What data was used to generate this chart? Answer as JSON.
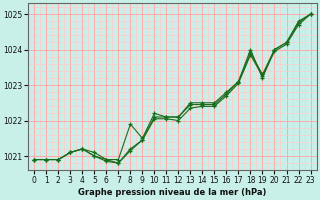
{
  "title": "Graphe pression niveau de la mer (hPa)",
  "bg_color": "#c8f0e8",
  "grid_color_major": "#ffaaaa",
  "grid_color_minor": "#ffcccc",
  "line_color": "#1a6b1a",
  "xmin": -0.5,
  "xmax": 23.5,
  "ymin": 1020.6,
  "ymax": 1025.3,
  "yticks": [
    1021,
    1022,
    1023,
    1024,
    1025
  ],
  "xticks": [
    0,
    1,
    2,
    3,
    4,
    5,
    6,
    7,
    8,
    9,
    10,
    11,
    12,
    13,
    14,
    15,
    16,
    17,
    18,
    19,
    20,
    21,
    22,
    23
  ],
  "series": [
    [
      1020.9,
      1020.9,
      1020.9,
      1021.1,
      1021.2,
      1021.1,
      1020.9,
      1020.9,
      1021.9,
      1021.5,
      1022.2,
      1022.1,
      1022.1,
      1022.5,
      1022.5,
      1022.5,
      1022.8,
      1023.1,
      1024.0,
      1023.2,
      1024.0,
      1024.2,
      1024.8,
      1025.0
    ],
    [
      1020.9,
      1020.9,
      1020.9,
      1021.1,
      1021.2,
      1021.0,
      1020.85,
      1020.8,
      1021.15,
      1021.45,
      1022.05,
      1022.05,
      1022.0,
      1022.35,
      1022.4,
      1022.4,
      1022.7,
      1023.05,
      1023.85,
      1023.25,
      1023.95,
      1024.15,
      1024.7,
      1025.0
    ],
    [
      1020.9,
      1020.9,
      1020.9,
      1021.1,
      1021.2,
      1021.0,
      1020.9,
      1020.8,
      1021.2,
      1021.45,
      1022.1,
      1022.1,
      1022.1,
      1022.45,
      1022.45,
      1022.45,
      1022.75,
      1023.1,
      1023.9,
      1023.3,
      1024.0,
      1024.2,
      1024.75,
      1025.0
    ]
  ],
  "straight_line": [
    1020.9,
    1025.0
  ]
}
